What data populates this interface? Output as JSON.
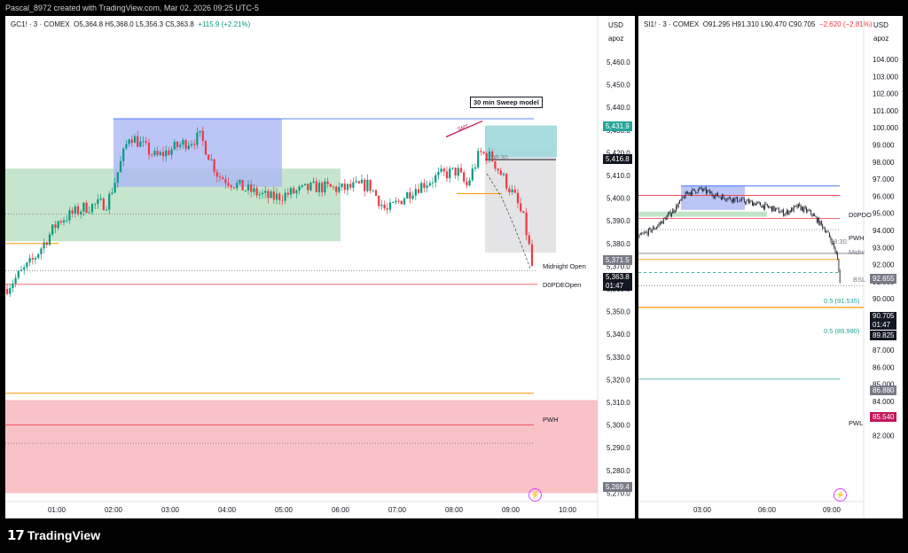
{
  "header": {
    "text": "Pascal_8972 created with TradingView.com, Mar 02, 2026 09:25 UTC-5"
  },
  "footer": {
    "brand": "TradingView",
    "logo_icon": "tradingview-logo-icon"
  },
  "left_chart": {
    "symbol": "GC1! · 3 · COMEX",
    "ohlc": "O5,364.8 H5,368.0 L5,356.3 C5,363.8",
    "change": "+115.9 (+2.21%)",
    "currency": "USD",
    "scale_mode": "apoz",
    "y_ticks": [
      "5,460.0",
      "5,450.0",
      "5,440.0",
      "5,430.0",
      "5,420.0",
      "5,410.0",
      "5,400.0",
      "5,390.0",
      "5,380.0",
      "5,370.0",
      "5,360.0",
      "5,350.0",
      "5,340.0",
      "5,330.0",
      "5,320.0",
      "5,310.0",
      "5,300.0",
      "5,290.0",
      "5,280.0",
      "5,270.0"
    ],
    "x_ticks": [
      "01:00",
      "02:00",
      "03:00",
      "04:00",
      "05:00",
      "06:00",
      "07:00",
      "08:00",
      "09:00",
      "10:00"
    ],
    "price_labels": {
      "a": "5,431.9",
      "b": "5,416.8",
      "c": "5,371.5",
      "current": "5,363.8",
      "countdown": "01:47",
      "low": "5,269.4"
    },
    "annotations": {
      "sweep_model": "30 min Sweep model",
      "smt": "SMT",
      "time_0830": "08:30",
      "midnight_open": "Midnight Open",
      "overlap": "D0PDEOpen",
      "pwh": "PWH"
    },
    "colors": {
      "up": "#089981",
      "down": "#f23645",
      "current_price": "#131722"
    }
  },
  "right_chart": {
    "symbol": "SI1! · 3 · COMEX",
    "ohlc": "O91.295 H91.310 L90.470 C90.705",
    "change": "−2.620 (−2.81%)",
    "currency": "USD",
    "scale_mode": "apoz",
    "y_ticks": [
      "104.000",
      "103.000",
      "102.000",
      "101.000",
      "100.000",
      "99.000",
      "98.000",
      "97.000",
      "96.000",
      "95.000",
      "94.000",
      "93.000",
      "92.000",
      "91.000",
      "90.000",
      "89.000",
      "88.000",
      "87.000",
      "86.000",
      "85.000",
      "84.000",
      "83.000",
      "82.000"
    ],
    "x_ticks": [
      "03:00",
      "06:00",
      "09:00"
    ],
    "price_labels": {
      "bsl": "92.655",
      "current": "90.705",
      "countdown": "01:47",
      "low": "89.825",
      "l2": "86.880",
      "l3": "85.540"
    },
    "annotations": {
      "overlap": "D0PDO",
      "pwh": "PWH",
      "time_0830": "08:30",
      "midnight": "Midni",
      "bsl": "BSL",
      "fib1": "0.5 (91.535)",
      "fib2": "0.5 (89.980)",
      "pwl": "PWL"
    }
  }
}
